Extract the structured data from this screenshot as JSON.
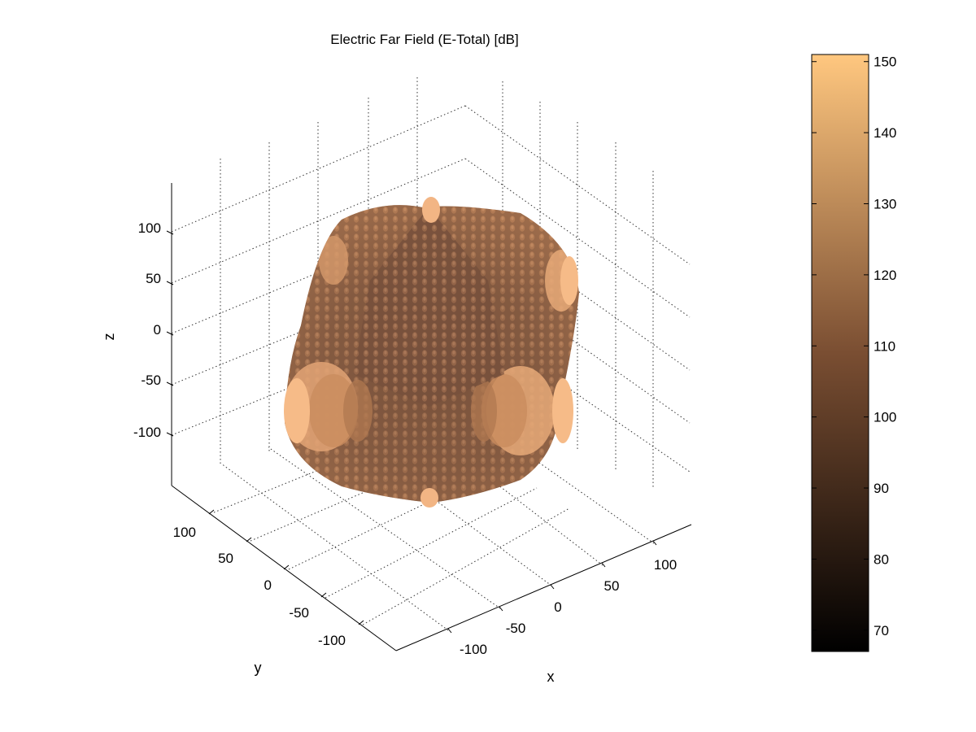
{
  "chart_data": {
    "type": "surface3d",
    "title": "Electric Far Field (E-Total) [dB]",
    "xlabel": "x",
    "ylabel": "y",
    "zlabel": "z",
    "x_ticks": [
      "-100",
      "-50",
      "0",
      "50",
      "100"
    ],
    "y_ticks": [
      "100",
      "50",
      "0",
      "-50",
      "-100"
    ],
    "z_ticks": [
      "100",
      "50",
      "0",
      "-50",
      "-100"
    ],
    "xlim": [
      -150,
      150
    ],
    "ylim": [
      -150,
      150
    ],
    "zlim": [
      -150,
      150
    ],
    "grid": true,
    "colormap": "copper",
    "colorbar": {
      "ticks": [
        "150",
        "140",
        "130",
        "120",
        "110",
        "100",
        "90",
        "80",
        "70"
      ],
      "range": [
        67,
        151
      ],
      "colors": [
        "#000000",
        "#ffc77f"
      ]
    }
  }
}
